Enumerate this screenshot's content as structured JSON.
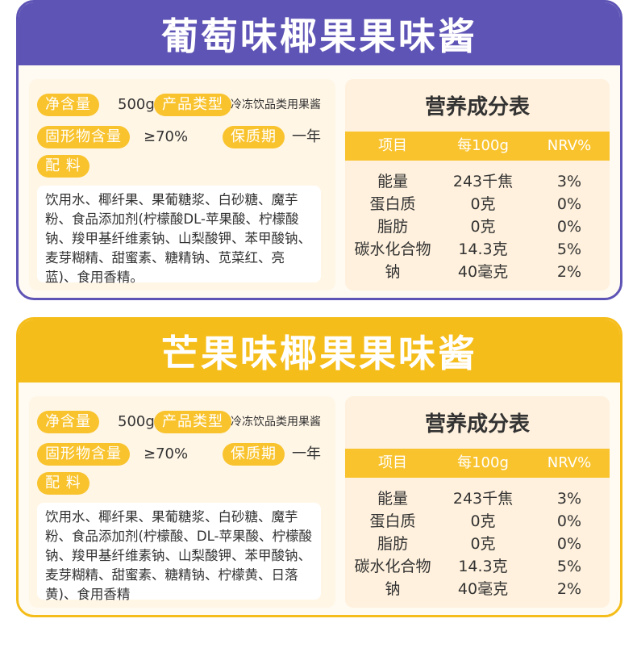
{
  "products": [
    {
      "title": "葡萄味椰果果味酱",
      "theme_color": "#5e54b5",
      "labels": {
        "net_content": "净含量",
        "product_type": "产品类型",
        "solids": "固形物含量",
        "shelf_life": "保质期",
        "ingredients": "配  料"
      },
      "net_content": "500g",
      "product_type": "冷冻饮品类用果酱",
      "solids": "≥70%",
      "shelf_life": "一年",
      "ingredients": "饮用水、椰纤果、果葡糖浆、白砂糖、魔芋粉、食品添加剂(柠檬酸DL-苹果酸、柠檬酸钠、羧甲基纤维素钠、山梨酸钾、苯甲酸钠、麦芽糊精、甜蜜素、糖精钠、苋菜红、亮蓝)、食用香精。",
      "nutrition": {
        "title": "营养成分表",
        "headers": [
          "项目",
          "每100g",
          "NRV%"
        ],
        "rows": [
          [
            "能量",
            "243千焦",
            "3%"
          ],
          [
            "蛋白质",
            "0克",
            "0%"
          ],
          [
            "脂肪",
            "0克",
            "0%"
          ],
          [
            "碳水化合物",
            "14.3克",
            "5%"
          ],
          [
            "钠",
            "40毫克",
            "2%"
          ]
        ]
      }
    },
    {
      "title": "芒果味椰果果味酱",
      "theme_color": "#f5bd1a",
      "labels": {
        "net_content": "净含量",
        "product_type": "产品类型",
        "solids": "固形物含量",
        "shelf_life": "保质期",
        "ingredients": "配  料"
      },
      "net_content": "500g",
      "product_type": "冷冻饮品类用果酱",
      "solids": "≥70%",
      "shelf_life": "一年",
      "ingredients": "饮用水、椰纤果、果葡糖浆、白砂糖、魔芋粉、食品添加剂(柠檬酸、DL-苹果酸、柠檬酸钠、羧甲基纤维素钠、山梨酸钾、苯甲酸钠、麦芽糊精、甜蜜素、糖精钠、柠檬黄、日落黄)、食用香精",
      "nutrition": {
        "title": "营养成分表",
        "headers": [
          "项目",
          "每100g",
          "NRV%"
        ],
        "rows": [
          [
            "能量",
            "243千焦",
            "3%"
          ],
          [
            "蛋白质",
            "0克",
            "0%"
          ],
          [
            "脂肪",
            "0克",
            "0%"
          ],
          [
            "碳水化合物",
            "14.3克",
            "5%"
          ],
          [
            "钠",
            "40毫克",
            "2%"
          ]
        ]
      }
    }
  ]
}
